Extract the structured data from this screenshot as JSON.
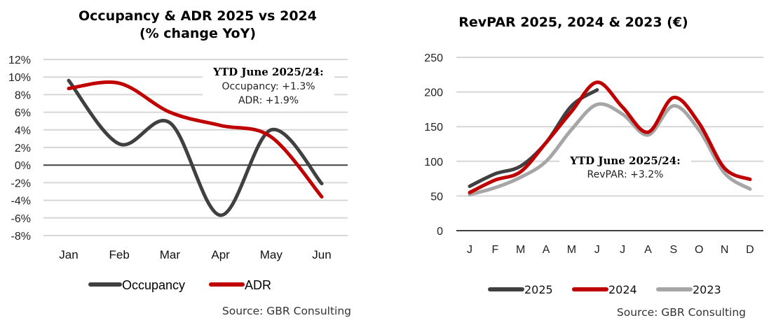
{
  "chart_data": [
    {
      "type": "line",
      "title": "Occupancy & ADR 2025 vs 2024",
      "subtitle": "(% change YoY)",
      "categories": [
        "Jan",
        "Feb",
        "Mar",
        "Apr",
        "May",
        "Jun"
      ],
      "series": [
        {
          "name": "Occupancy",
          "color": "#404040",
          "values": [
            9.6,
            2.4,
            4.8,
            -5.7,
            4.0,
            -2.1
          ]
        },
        {
          "name": "ADR",
          "color": "#c00000",
          "values": [
            8.7,
            9.3,
            6.0,
            4.5,
            3.2,
            -3.6
          ]
        }
      ],
      "ylim": [
        -8,
        12
      ],
      "yticks": [
        12,
        10,
        8,
        6,
        4,
        2,
        0,
        -2,
        -4,
        -6,
        -8
      ],
      "ytick_labels": [
        "12%",
        "10%",
        "8%",
        "6%",
        "4%",
        "2%",
        "0%",
        "-2%",
        "-4%",
        "-6%",
        "-8%"
      ],
      "grid": true,
      "legend": "bottom",
      "annotation": {
        "heading": "YTD June 2025/24:",
        "lines": [
          "Occupancy: +1.3%",
          "ADR: +1.9%"
        ]
      },
      "source": "Source: GBR Consulting",
      "xlabel": "",
      "ylabel": ""
    },
    {
      "type": "line",
      "title": "RevPAR 2025, 2024 & 2023 (€)",
      "categories": [
        "J",
        "F",
        "M",
        "A",
        "M",
        "J",
        "J",
        "A",
        "S",
        "O",
        "N",
        "D"
      ],
      "series": [
        {
          "name": "2025",
          "color": "#404040",
          "values": [
            64,
            82,
            93,
            127,
            180,
            203
          ]
        },
        {
          "name": "2024",
          "color": "#c00000",
          "values": [
            55,
            73,
            85,
            127,
            172,
            214,
            178,
            142,
            192,
            155,
            90,
            74
          ]
        },
        {
          "name": "2023",
          "color": "#a6a6a6",
          "values": [
            52,
            62,
            77,
            100,
            146,
            182,
            168,
            138,
            180,
            145,
            83,
            60
          ]
        }
      ],
      "ylim": [
        0,
        250
      ],
      "yticks": [
        250,
        200,
        150,
        100,
        50,
        0
      ],
      "ytick_labels": [
        "250",
        "200",
        "150",
        "100",
        "50",
        "0"
      ],
      "grid": true,
      "legend": "bottom",
      "annotation": {
        "heading": "YTD June 2025/24:",
        "lines": [
          "RevPAR: +3.2%"
        ]
      },
      "source": "Source: GBR Consulting",
      "xlabel": "",
      "ylabel": ""
    }
  ]
}
